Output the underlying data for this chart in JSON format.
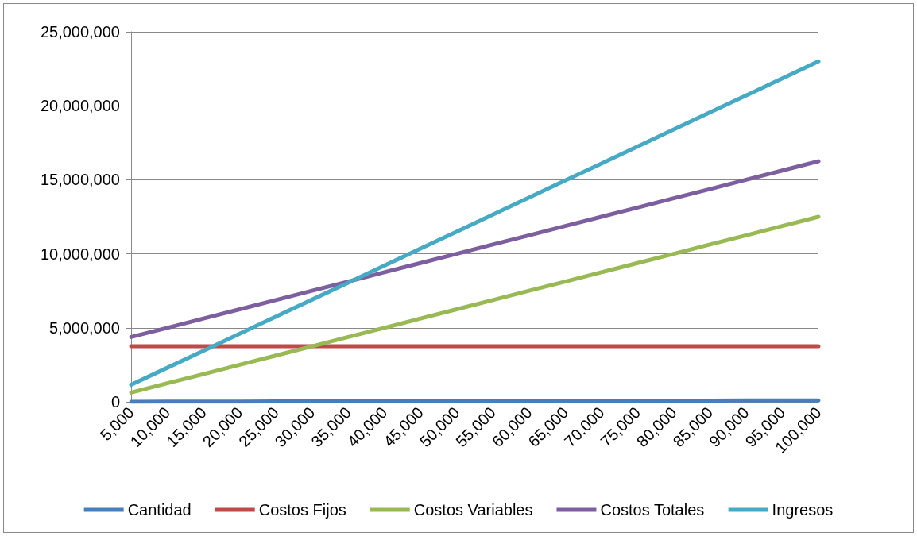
{
  "chart_data": {
    "type": "line",
    "categories": [
      "5,000",
      "10,000",
      "15,000",
      "20,000",
      "25,000",
      "30,000",
      "35,000",
      "40,000",
      "45,000",
      "50,000",
      "55,000",
      "60,000",
      "65,000",
      "70,000",
      "75,000",
      "80,000",
      "85,000",
      "90,000",
      "95,000",
      "100,000"
    ],
    "series": [
      {
        "name": "Cantidad",
        "color": "#4a7ebb",
        "values": [
          5000,
          10000,
          15000,
          20000,
          25000,
          30000,
          35000,
          40000,
          45000,
          50000,
          55000,
          60000,
          65000,
          70000,
          75000,
          80000,
          85000,
          90000,
          95000,
          100000
        ]
      },
      {
        "name": "Costos Fijos",
        "color": "#be4b48",
        "values": [
          3750000,
          3750000,
          3750000,
          3750000,
          3750000,
          3750000,
          3750000,
          3750000,
          3750000,
          3750000,
          3750000,
          3750000,
          3750000,
          3750000,
          3750000,
          3750000,
          3750000,
          3750000,
          3750000,
          3750000
        ]
      },
      {
        "name": "Costos Variables",
        "color": "#98b954",
        "values": [
          625000,
          1250000,
          1875000,
          2500000,
          3125000,
          3750000,
          4375000,
          5000000,
          5625000,
          6250000,
          6875000,
          7500000,
          8125000,
          8750000,
          9375000,
          10000000,
          10625000,
          11250000,
          11875000,
          12500000
        ]
      },
      {
        "name": "Costos Totales",
        "color": "#7d5fa0",
        "values": [
          4375000,
          5000000,
          5625000,
          6250000,
          6875000,
          7500000,
          8125000,
          8750000,
          9375000,
          10000000,
          10625000,
          11250000,
          11875000,
          12500000,
          13125000,
          13750000,
          14375000,
          15000000,
          15625000,
          16250000
        ]
      },
      {
        "name": "Ingresos",
        "color": "#46aac5",
        "values": [
          1150000,
          2300000,
          3450000,
          4600000,
          5750000,
          6900000,
          8050000,
          9200000,
          10350000,
          11500000,
          12650000,
          13800000,
          14950000,
          16100000,
          17250000,
          18400000,
          19550000,
          20700000,
          21850000,
          23000000
        ]
      }
    ],
    "ylim": [
      0,
      25000000
    ],
    "yticks": [
      0,
      {
        "value": 5000000,
        "label": "5,000,000"
      },
      {
        "value": 10000000,
        "label": "10,000,000"
      },
      {
        "value": 15000000,
        "label": "15,000,000"
      },
      {
        "value": 20000000,
        "label": "20,000,000"
      },
      {
        "value": 25000000,
        "label": "25,000,000"
      }
    ],
    "grid": "y",
    "legend": "bottom",
    "marker": "none",
    "line_style": "solid"
  }
}
